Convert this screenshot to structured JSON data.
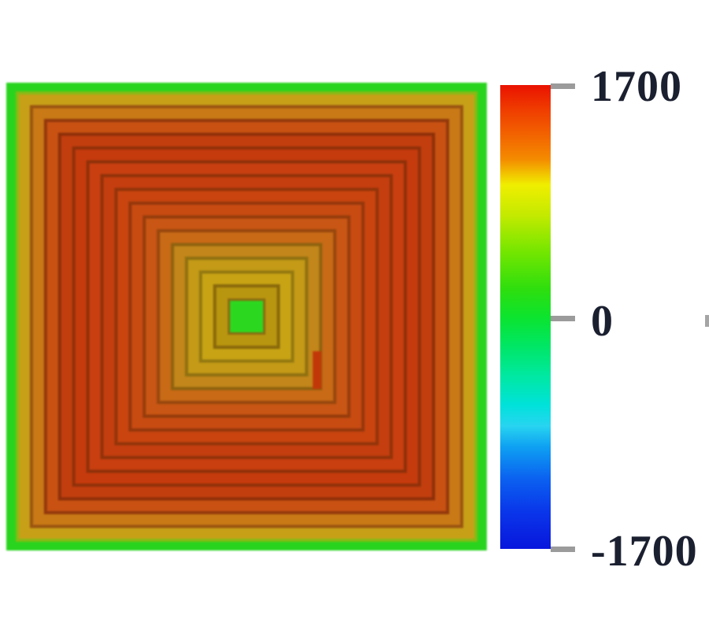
{
  "page": {
    "background_color": "#ffffff"
  },
  "chart_data": {
    "type": "heatmap",
    "title": "",
    "legend_position": "right",
    "grid": false,
    "colorbar": {
      "orientation": "vertical",
      "min": -1700,
      "mid": 0,
      "max": 1700,
      "tick_color": "#9b9b9b",
      "label_color": "#1b2030",
      "ticks": [
        {
          "value": 1700,
          "label": "1700"
        },
        {
          "value": 0,
          "label": "0"
        },
        {
          "value": -1700,
          "label": "-1700"
        }
      ],
      "gradient_stops": [
        {
          "pos": 0.0,
          "color": "#ea1200"
        },
        {
          "pos": 0.05,
          "color": "#ef3a00"
        },
        {
          "pos": 0.1,
          "color": "#f25e00"
        },
        {
          "pos": 0.16,
          "color": "#f48b00"
        },
        {
          "pos": 0.215,
          "color": "#f0ee00"
        },
        {
          "pos": 0.28,
          "color": "#c4ea00"
        },
        {
          "pos": 0.36,
          "color": "#74e600"
        },
        {
          "pos": 0.44,
          "color": "#2ede0e"
        },
        {
          "pos": 0.5,
          "color": "#0ce42e"
        },
        {
          "pos": 0.56,
          "color": "#00e662"
        },
        {
          "pos": 0.63,
          "color": "#00e8a4"
        },
        {
          "pos": 0.69,
          "color": "#00e2da"
        },
        {
          "pos": 0.735,
          "color": "#28d4f0"
        },
        {
          "pos": 0.78,
          "color": "#0ea0f2"
        },
        {
          "pos": 0.85,
          "color": "#0b60f0"
        },
        {
          "pos": 0.92,
          "color": "#0a36ea"
        },
        {
          "pos": 1.0,
          "color": "#0816dc"
        }
      ]
    },
    "field": {
      "background_value": 0,
      "background_color": "#28d41e",
      "center_square_value": 0,
      "center_square_color": "#2bd81f",
      "center_edge_color": "#8a6a12",
      "rings_outer_to_inner": [
        {
          "color": "#c8a018",
          "edge": "#86bb14",
          "value": 1000
        },
        {
          "color": "#c97a16",
          "edge": "#9a5410",
          "value": 1250
        },
        {
          "color": "#c95212",
          "edge": "#93380c",
          "value": 1400
        },
        {
          "color": "#c23e0e",
          "edge": "#8e2f09",
          "value": 1500
        },
        {
          "color": "#c63b0d",
          "edge": "#90300a",
          "value": 1500
        },
        {
          "color": "#c93f10",
          "edge": "#8e3009",
          "value": 1500
        },
        {
          "color": "#c53e0f",
          "edge": "#903209",
          "value": 1500
        },
        {
          "color": "#c9440f",
          "edge": "#92340a",
          "value": 1480
        },
        {
          "color": "#c84b12",
          "edge": "#94370b",
          "value": 1450
        },
        {
          "color": "#c95614",
          "edge": "#953c0b",
          "value": 1400
        },
        {
          "color": "#c96a16",
          "edge": "#97470d",
          "value": 1250
        },
        {
          "color": "#c2861a",
          "edge": "#8f620e",
          "value": 1100
        },
        {
          "color": "#c49a16",
          "edge": "#8f7010",
          "value": 1000
        },
        {
          "color": "#c8a414",
          "edge": "#937810",
          "value": 980
        },
        {
          "color": "#b9960f",
          "edge": "#89680a",
          "value": 950
        }
      ],
      "anomaly": {
        "color": "#c23708",
        "value": 1550
      }
    }
  }
}
